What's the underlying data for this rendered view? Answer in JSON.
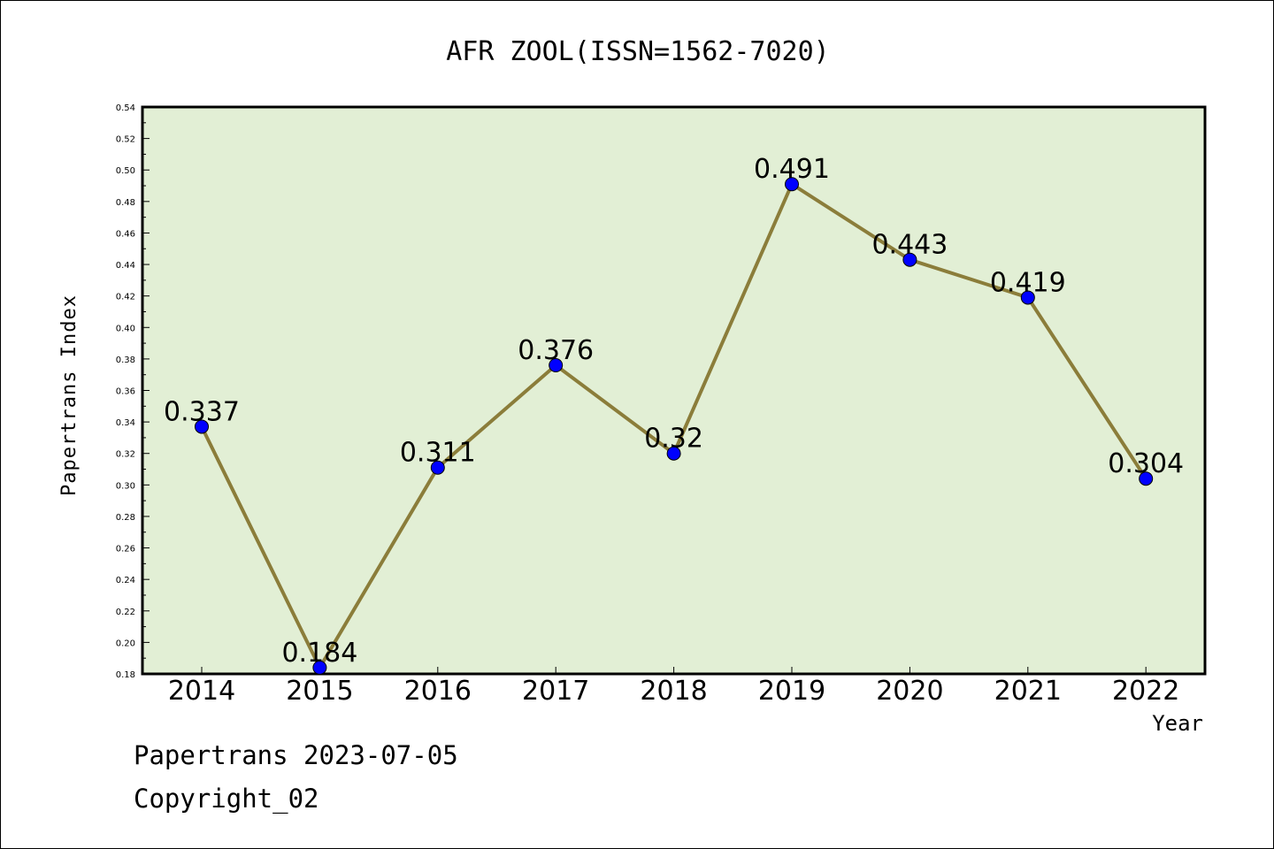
{
  "chart_data": {
    "type": "line",
    "title": "AFR ZOOL(ISSN=1562-7020)",
    "xlabel": "Year",
    "ylabel": "Papertrans Index",
    "categories": [
      "2014",
      "2015",
      "2016",
      "2017",
      "2018",
      "2019",
      "2020",
      "2021",
      "2022"
    ],
    "series": [
      {
        "values": [
          0.337,
          0.184,
          0.311,
          0.376,
          0.32,
          0.491,
          0.443,
          0.419,
          0.304
        ],
        "data_labels": [
          "0.337",
          "0.184",
          "0.311",
          "0.376",
          "0.32",
          "0.491",
          "0.443",
          "0.419",
          "0.304"
        ]
      }
    ],
    "ylim": [
      0.18,
      0.54
    ],
    "yticks": [
      "0.18",
      "0.20",
      "0.22",
      "0.24",
      "0.26",
      "0.28",
      "0.30",
      "0.32",
      "0.34",
      "0.36",
      "0.38",
      "0.40",
      "0.42",
      "0.44",
      "0.46",
      "0.48",
      "0.50",
      "0.52",
      "0.54"
    ],
    "grid": false,
    "legend": "none",
    "colors": {
      "plot_background": "#e2efd5",
      "line": "#8b7d3a",
      "marker": "#0000ff",
      "axis": "#000000"
    }
  },
  "footer": {
    "date_text": "Papertrans 2023-07-05",
    "copyright_text": "Copyright_02"
  }
}
